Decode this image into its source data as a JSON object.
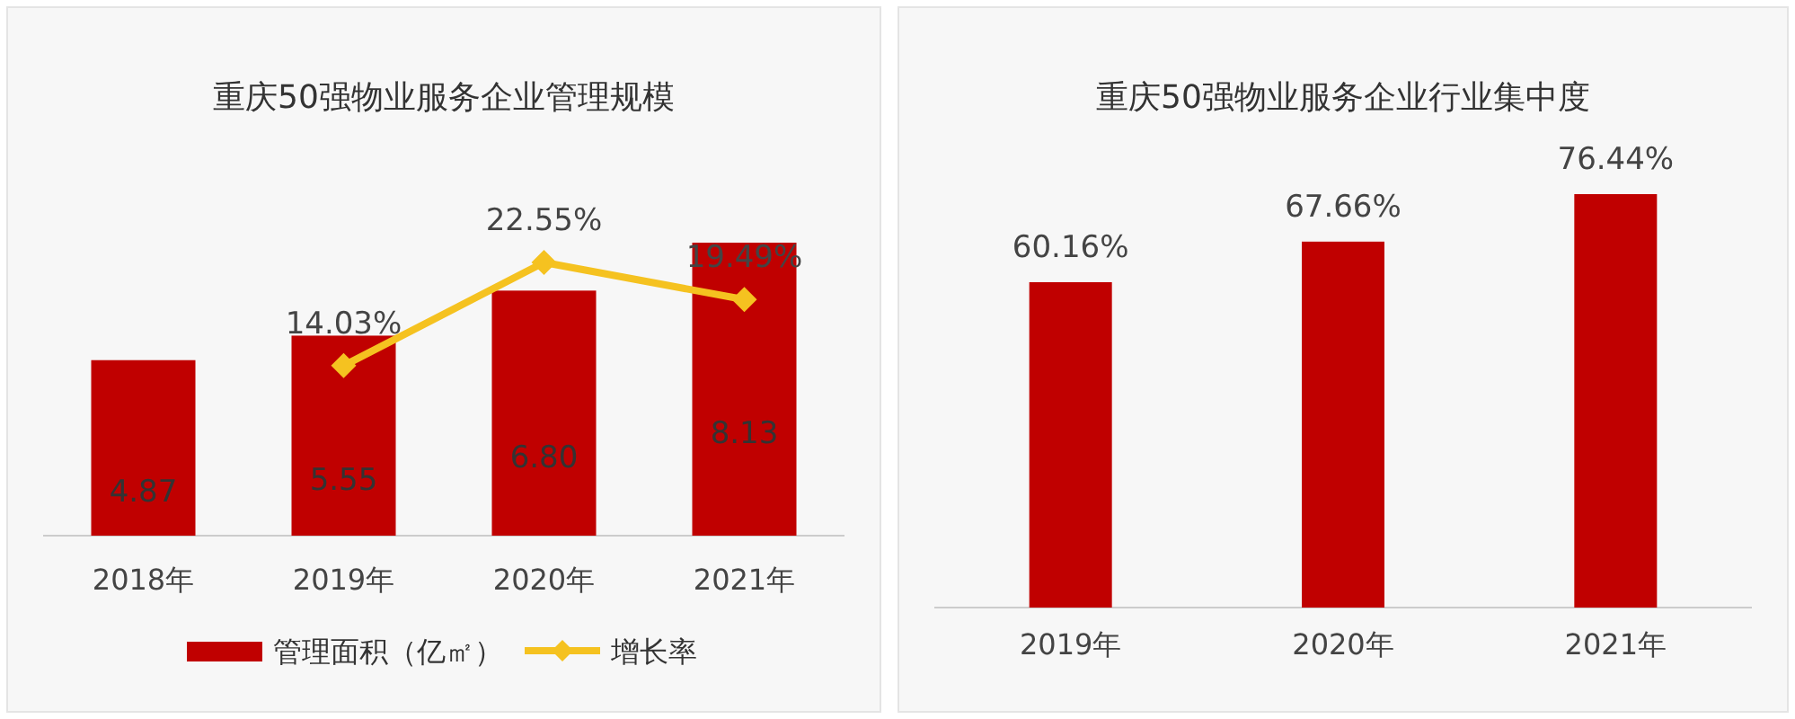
{
  "chart_data": [
    {
      "type": "bar",
      "title": "重庆50强物业服务企业管理规模",
      "categories": [
        "2018年",
        "2019年",
        "2020年",
        "2021年"
      ],
      "legend": "bottom",
      "marker": "diamond",
      "series": [
        {
          "name": "管理面积（亿㎡）",
          "color": "#c00000",
          "values": [
            4.87,
            5.55,
            6.8,
            8.13
          ],
          "value_labels": [
            "4.87",
            "5.55",
            "6.80",
            "8.13"
          ]
        },
        {
          "name": "增长率",
          "type": "line",
          "axis": "y2",
          "color": "#f5c220",
          "values": [
            null,
            14.03,
            22.55,
            19.49
          ],
          "value_labels": [
            null,
            "14.03%",
            "22.55%",
            "19.49%"
          ]
        }
      ]
    },
    {
      "type": "bar",
      "title": "重庆50强物业服务企业行业集中度",
      "categories": [
        "2019年",
        "2020年",
        "2021年"
      ],
      "color": "#c00000",
      "values": [
        60.16,
        67.66,
        76.44
      ],
      "value_labels": [
        "60.16%",
        "67.66%",
        "76.44%"
      ]
    }
  ]
}
